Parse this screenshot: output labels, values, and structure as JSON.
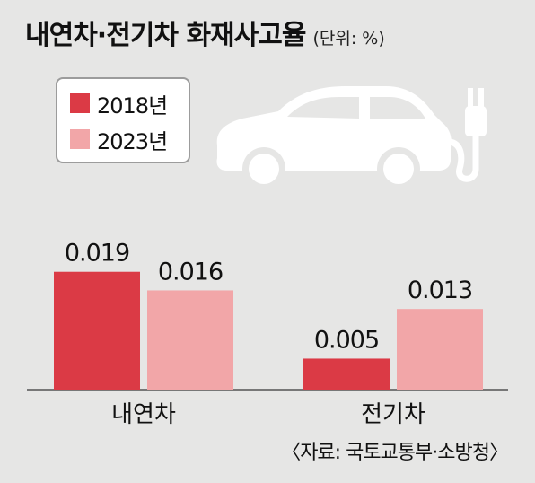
{
  "title": "내연차·전기차 화재사고율",
  "unit": "(단위: %)",
  "source": "〈자료: 국토교통부·소방청〉",
  "icon": "electric-car-icon",
  "colors": {
    "2018": "#db3a45",
    "2023": "#f2a6a8",
    "background": "#e6e6e5"
  },
  "chart_data": {
    "type": "bar",
    "categories": [
      "내연차",
      "전기차"
    ],
    "series": [
      {
        "name": "2018년",
        "values": [
          0.019,
          0.005
        ]
      },
      {
        "name": "2023년",
        "values": [
          0.016,
          0.013
        ]
      }
    ],
    "value_labels": [
      [
        "0.019",
        "0.005"
      ],
      [
        "0.016",
        "0.013"
      ]
    ],
    "legend": "top-left",
    "grid": false,
    "ylim": [
      0,
      0.0275
    ]
  }
}
